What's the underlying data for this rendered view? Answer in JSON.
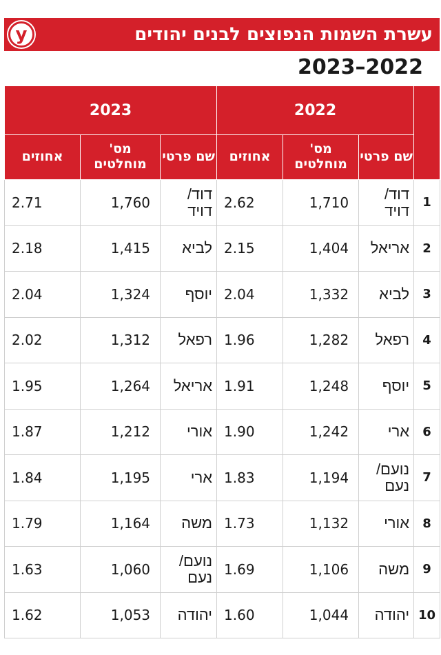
{
  "title": "עשרת השמות הנפוצים לבנים יהודים",
  "logo_letter": "y",
  "subtitle": "2023–2022",
  "years": [
    "2022",
    "2023"
  ],
  "columns": {
    "name": "שם פרטי",
    "count": "מס' מוחלטים",
    "percent": "אחוזים"
  },
  "rows": [
    {
      "rank": "1",
      "y2022": {
        "name": "דוד/ דויד",
        "count": "1,710",
        "pct": "2.62"
      },
      "y2023": {
        "name": "דוד/ דויד",
        "count": "1,760",
        "pct": "2.71"
      }
    },
    {
      "rank": "2",
      "y2022": {
        "name": "אריאל",
        "count": "1,404",
        "pct": "2.15"
      },
      "y2023": {
        "name": "לביא",
        "count": "1,415",
        "pct": "2.18"
      }
    },
    {
      "rank": "3",
      "y2022": {
        "name": "לביא",
        "count": "1,332",
        "pct": "2.04"
      },
      "y2023": {
        "name": "יוסף",
        "count": "1,324",
        "pct": "2.04"
      }
    },
    {
      "rank": "4",
      "y2022": {
        "name": "רפאל",
        "count": "1,282",
        "pct": "1.96"
      },
      "y2023": {
        "name": "רפאל",
        "count": "1,312",
        "pct": "2.02"
      }
    },
    {
      "rank": "5",
      "y2022": {
        "name": "יוסף",
        "count": "1,248",
        "pct": "1.91"
      },
      "y2023": {
        "name": "אריאל",
        "count": "1,264",
        "pct": "1.95"
      }
    },
    {
      "rank": "6",
      "y2022": {
        "name": "ארי",
        "count": "1,242",
        "pct": "1.90"
      },
      "y2023": {
        "name": "אורי",
        "count": "1,212",
        "pct": "1.87"
      }
    },
    {
      "rank": "7",
      "y2022": {
        "name": "נועם/ נעם",
        "count": "1,194",
        "pct": "1.83"
      },
      "y2023": {
        "name": "ארי",
        "count": "1,195",
        "pct": "1.84"
      }
    },
    {
      "rank": "8",
      "y2022": {
        "name": "אורי",
        "count": "1,132",
        "pct": "1.73"
      },
      "y2023": {
        "name": "משה",
        "count": "1,164",
        "pct": "1.79"
      }
    },
    {
      "rank": "9",
      "y2022": {
        "name": "משה",
        "count": "1,106",
        "pct": "1.69"
      },
      "y2023": {
        "name": "נועם/ נעם",
        "count": "1,060",
        "pct": "1.63"
      }
    },
    {
      "rank": "10",
      "y2022": {
        "name": "יהודה",
        "count": "1,044",
        "pct": "1.60"
      },
      "y2023": {
        "name": "יהודה",
        "count": "1,053",
        "pct": "1.62"
      }
    }
  ],
  "colors": {
    "accent": "#d4202a"
  }
}
